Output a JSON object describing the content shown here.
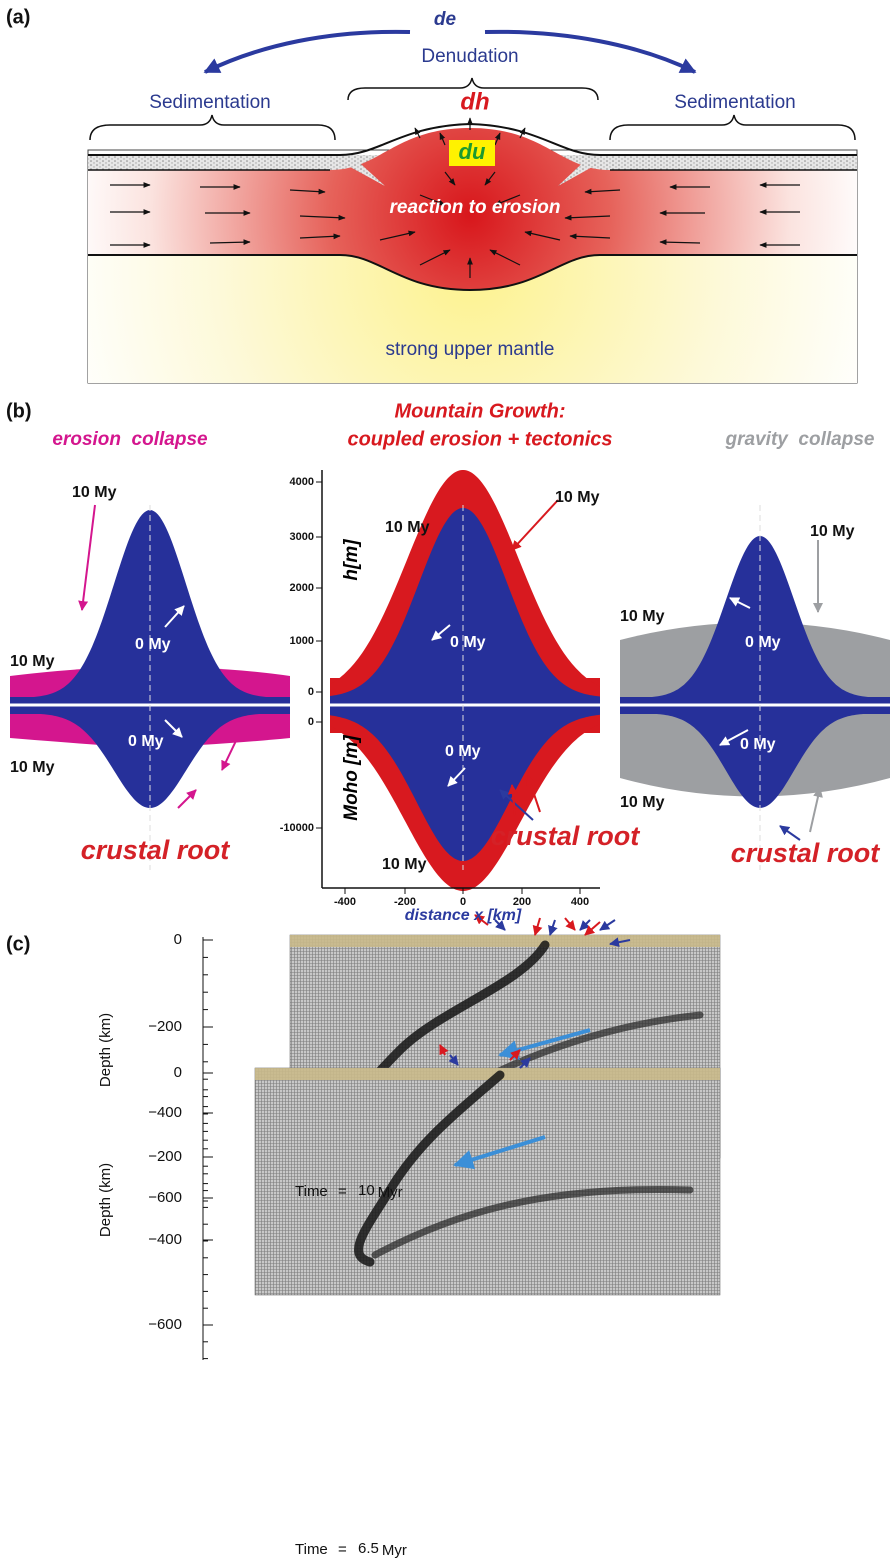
{
  "panel_a": {
    "label": "(a)",
    "de": "de",
    "denudation": "Denudation",
    "sedimentation_left": "Sedimentation",
    "sedimentation_right": "Sedimentation",
    "dh": "dh",
    "du": "du",
    "reaction": "reaction to erosion",
    "mantle": "strong upper mantle"
  },
  "panel_b": {
    "label": "(b)",
    "left": {
      "title": "erosion  collapse",
      "upper_final": "10 My",
      "side_final": "10 My",
      "upper_initial": "0 My",
      "lower_initial": "0 My",
      "lower_final": "10 My",
      "root": "crustal root"
    },
    "middle": {
      "title_line1": "Mountain Growth:",
      "title_line2": "coupled erosion + tectonics",
      "upper_final_left": "10 My",
      "upper_final_right": "10 My",
      "upper_initial": "0 My",
      "lower_initial": "0 My",
      "lower_final": "10 My",
      "root": "crustal root",
      "y_label_top": "h[m]",
      "y_label_bottom": "Moho [m]",
      "y_ticks_top": [
        "4000",
        "3000",
        "2000",
        "1000",
        "0"
      ],
      "y_ticks_bottom": [
        "0",
        "-10000"
      ],
      "x_ticks": [
        "-400",
        "-200",
        "0",
        "200",
        "400"
      ],
      "x_label": "distance x [km]"
    },
    "right": {
      "title": "gravity  collapse",
      "upper_final_right": "10 My",
      "upper_final_left": "10 My",
      "upper_initial": "0 My",
      "lower_initial": "0 My",
      "lower_final": "10 My",
      "root": "crustal root"
    }
  },
  "panel_c": {
    "label": "(c)",
    "plots": [
      {
        "y_ticks": [
          "0",
          "−200",
          "−400",
          "−600"
        ],
        "y_label": "Depth (km)",
        "time_prefix": "Time",
        "equals": "=",
        "time_value": "10",
        "time_unit": "Myr"
      },
      {
        "y_ticks": [
          "0",
          "−200",
          "−400",
          "−600"
        ],
        "y_label": "Depth (km)",
        "time_prefix": "Time",
        "equals": "=",
        "time_value": "6.5",
        "time_unit": "Myr"
      }
    ]
  }
}
